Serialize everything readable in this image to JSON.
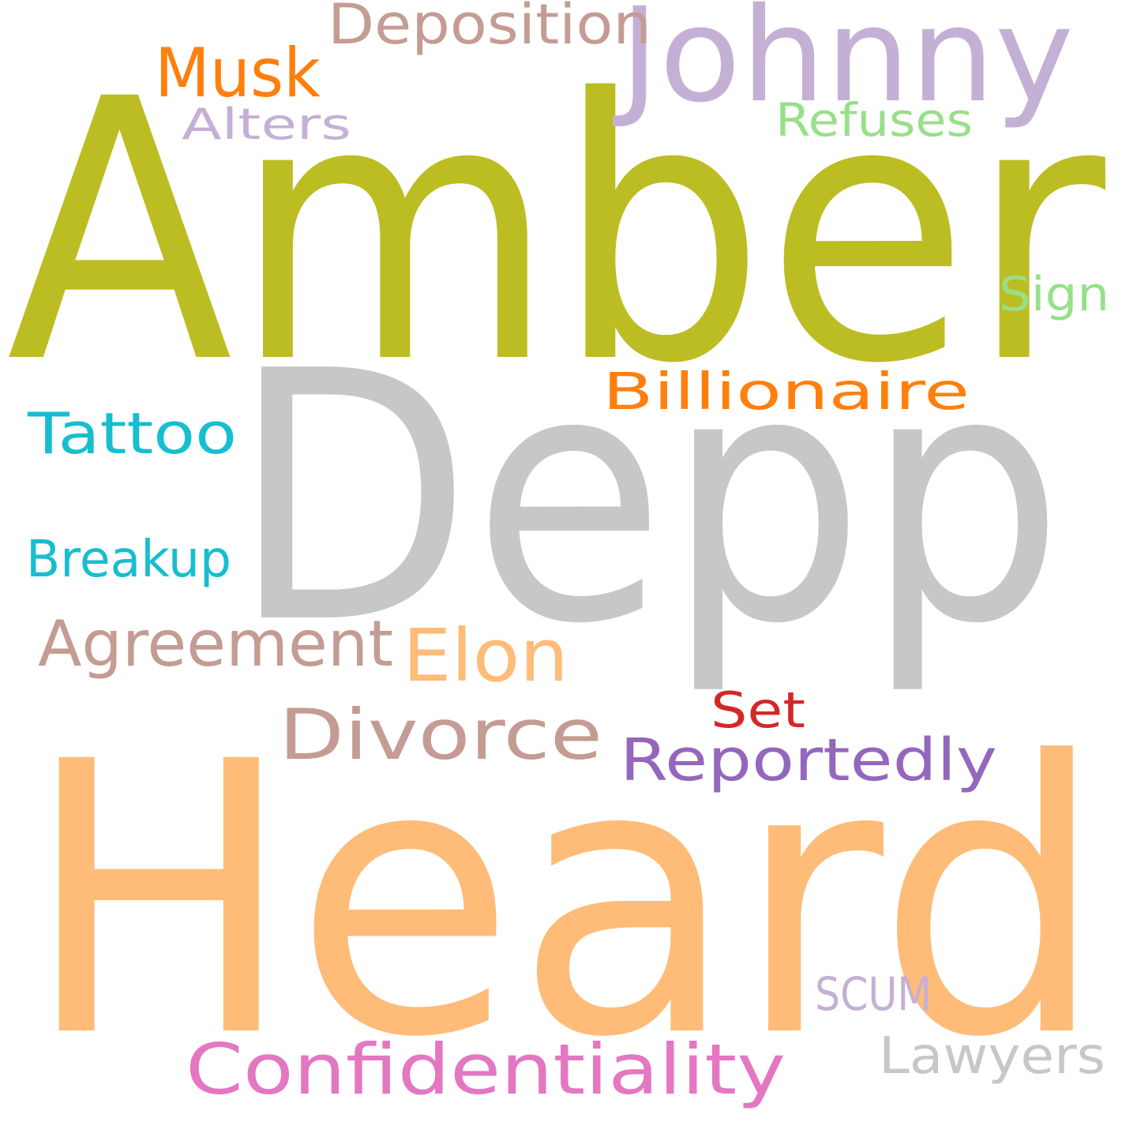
{
  "words": [
    {
      "text": "Depp",
      "color": "#c7c7c7"
    },
    {
      "text": "Heard",
      "color": "#ffbb78"
    },
    {
      "text": "Amber",
      "color": "#bcbd22"
    },
    {
      "text": "Johnny",
      "color": "#c5b0d5"
    },
    {
      "text": "Deposition",
      "color": "#c49c94"
    },
    {
      "text": "Musk",
      "color": "#ff7f0e"
    },
    {
      "text": "Alters",
      "color": "#c5b0d5"
    },
    {
      "text": "Refuses",
      "color": "#98df8a"
    },
    {
      "text": "Sign",
      "color": "#98df8a"
    },
    {
      "text": "Billionaire",
      "color": "#ff7f0e"
    },
    {
      "text": "Tattoo",
      "color": "#17becf"
    },
    {
      "text": "Breakup",
      "color": "#17becf"
    },
    {
      "text": "Agreement",
      "color": "#c49c94"
    },
    {
      "text": "Elon",
      "color": "#ffbb78"
    },
    {
      "text": "Set",
      "color": "#d62728"
    },
    {
      "text": "Divorce",
      "color": "#c49c94"
    },
    {
      "text": "Reportedly",
      "color": "#9467bd"
    },
    {
      "text": "SCUM",
      "color": "#c5b0d5"
    },
    {
      "text": "Confidentiality",
      "color": "#e377c2"
    },
    {
      "text": "Lawyers",
      "color": "#c7c7c7"
    }
  ]
}
